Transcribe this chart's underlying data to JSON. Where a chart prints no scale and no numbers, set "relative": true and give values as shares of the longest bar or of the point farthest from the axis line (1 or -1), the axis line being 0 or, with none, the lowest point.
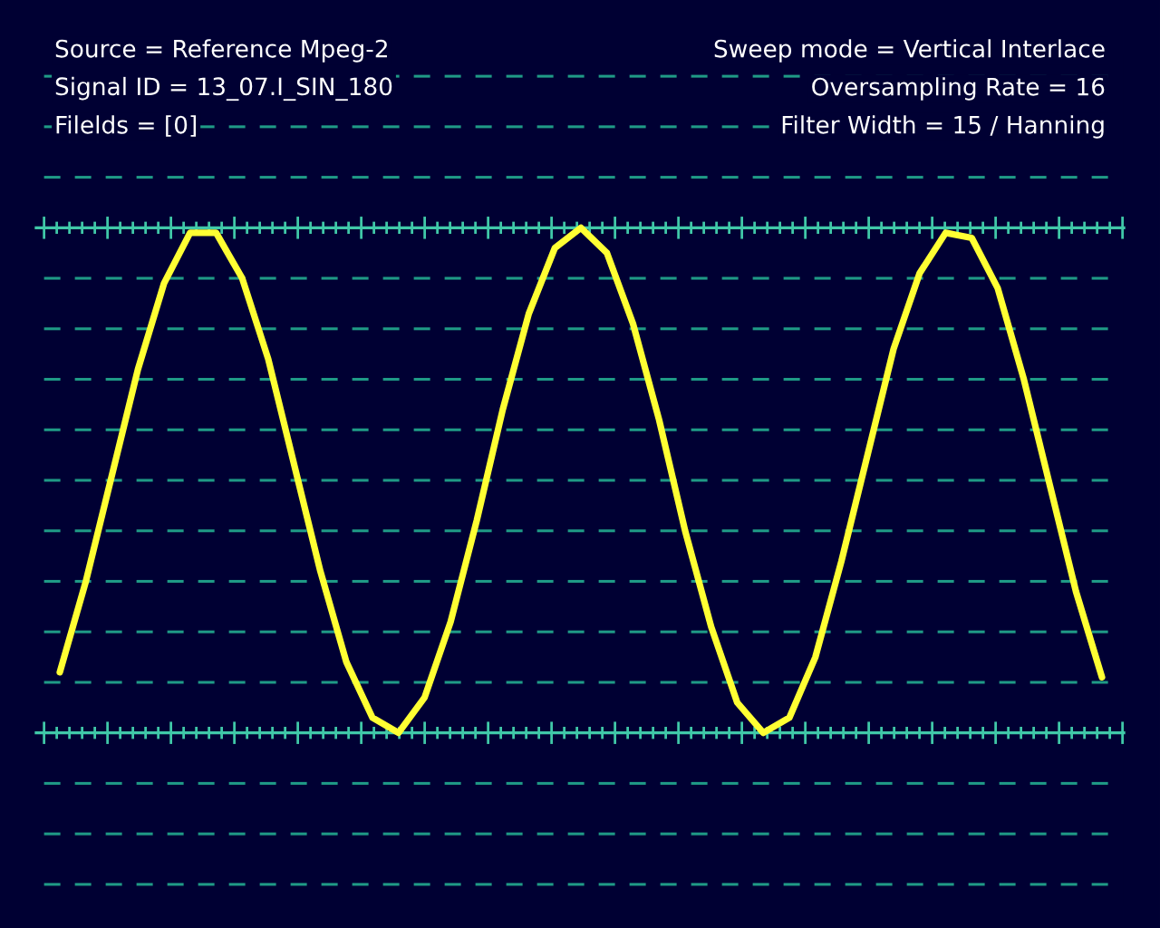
{
  "chart_data": {
    "type": "line",
    "relative": true,
    "grid": "y",
    "color": "#ffff33",
    "categories": [
      null,
      null,
      null,
      null,
      null,
      null,
      null,
      null,
      null,
      null,
      null,
      null,
      null,
      null,
      null,
      null,
      null,
      null,
      null,
      null,
      null,
      null,
      null,
      null,
      null,
      null,
      null,
      null,
      null,
      null,
      null,
      null,
      null,
      null,
      null,
      null,
      null,
      null,
      null,
      null,
      null
    ],
    "values": [
      0.12,
      0.3,
      0.51,
      0.72,
      0.89,
      0.99,
      0.99,
      0.9,
      0.74,
      0.53,
      0.32,
      0.14,
      0.03,
      0.0,
      0.07,
      0.22,
      0.42,
      0.64,
      0.83,
      0.96,
      1.0,
      0.95,
      0.81,
      0.62,
      0.4,
      0.21,
      0.06,
      0.0,
      0.03,
      0.15,
      0.34,
      0.55,
      0.76,
      0.91,
      0.99,
      0.98,
      0.88,
      0.7,
      0.49,
      0.28,
      0.11
    ],
    "annotations": [
      "Source = Reference Mpeg-2",
      "Signal ID = 13_07.I_SIN_180",
      "Filelds = [0]",
      "Sweep mode = Vertical Interlace",
      "Oversampling Rate = 16",
      "Filter Width = 15 / Hanning"
    ]
  }
}
